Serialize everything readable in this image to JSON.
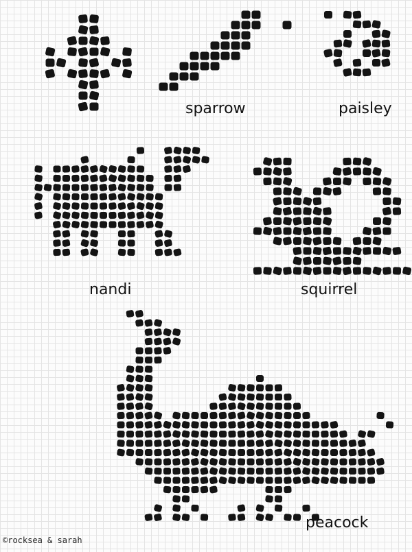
{
  "labels": {
    "sparrow": "sparrow",
    "paisley": "paisley",
    "nandi": "nandi",
    "squirrel": "squirrel",
    "peacock": "peacock"
  },
  "credit": "©rocksea & sarah",
  "colors": {
    "ink": "#141414",
    "grid": "#e4e4e4",
    "paper": "#fcfcfc"
  }
}
